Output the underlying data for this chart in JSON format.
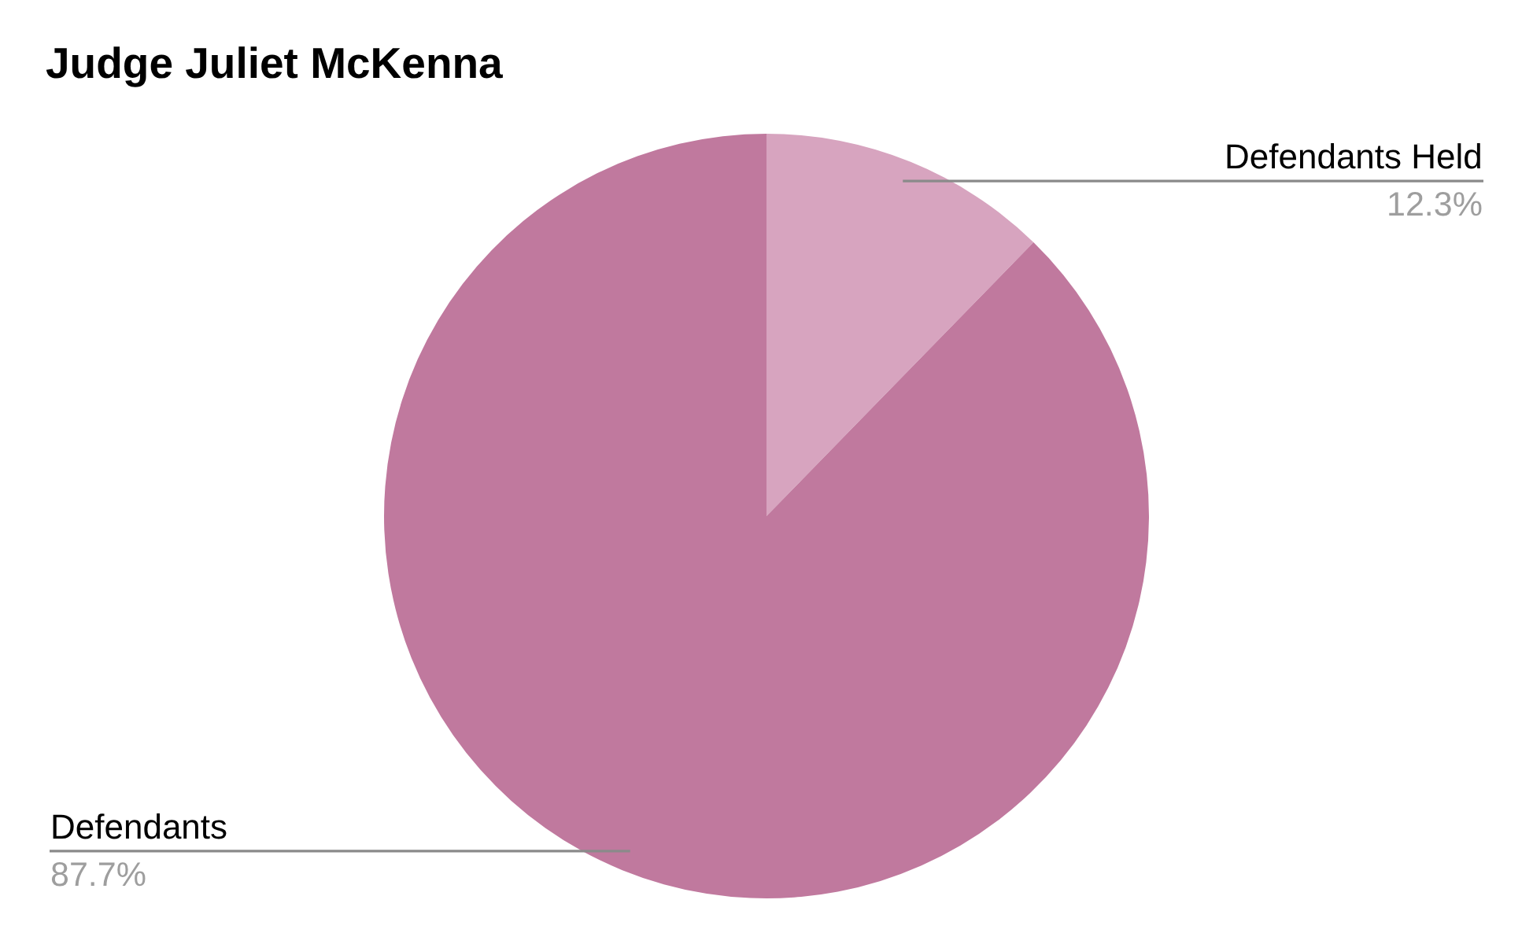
{
  "chart_data": {
    "type": "pie",
    "title": "Judge Juliet McKenna",
    "categories": [
      "Defendants Held",
      "Defendants"
    ],
    "values": [
      12.3,
      87.7
    ],
    "colors": [
      "#d7a4bf",
      "#c0799e"
    ],
    "value_labels": [
      "12.3%",
      "87.7%"
    ]
  }
}
